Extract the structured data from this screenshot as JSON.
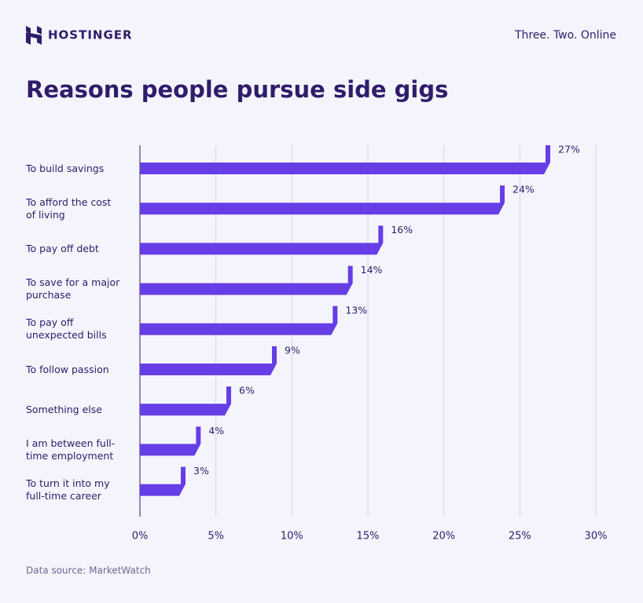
{
  "header": {
    "logo": "HOSTINGER",
    "tagline": "Three. Two. Online"
  },
  "chart_data": {
    "type": "bar",
    "orientation": "horizontal",
    "title": "Reasons people pursue side gigs",
    "source": "Data source: MarketWatch",
    "categories": [
      "To build savings",
      "To afford the cost of living",
      "To pay off debt",
      "To save for a major purchase",
      "To pay off unexpected bills",
      "To follow passion",
      "Something else",
      "I am between full-time employment",
      "To turn it into my full-time career"
    ],
    "values": [
      27,
      24,
      16,
      14,
      13,
      9,
      6,
      4,
      3
    ],
    "value_labels": [
      "27%",
      "24%",
      "16%",
      "14%",
      "13%",
      "9%",
      "6%",
      "4%",
      "3%"
    ],
    "color": "#673de6",
    "xlim": [
      0,
      30
    ],
    "xticks": [
      {
        "value": 0,
        "label": "0%"
      },
      {
        "value": 5,
        "label": "5%"
      },
      {
        "value": 10,
        "label": "10%"
      },
      {
        "value": 15,
        "label": "15%"
      },
      {
        "value": 20,
        "label": "20%"
      },
      {
        "value": 25,
        "label": "25%"
      },
      {
        "value": 30,
        "label": "30%"
      }
    ],
    "grid": true
  }
}
